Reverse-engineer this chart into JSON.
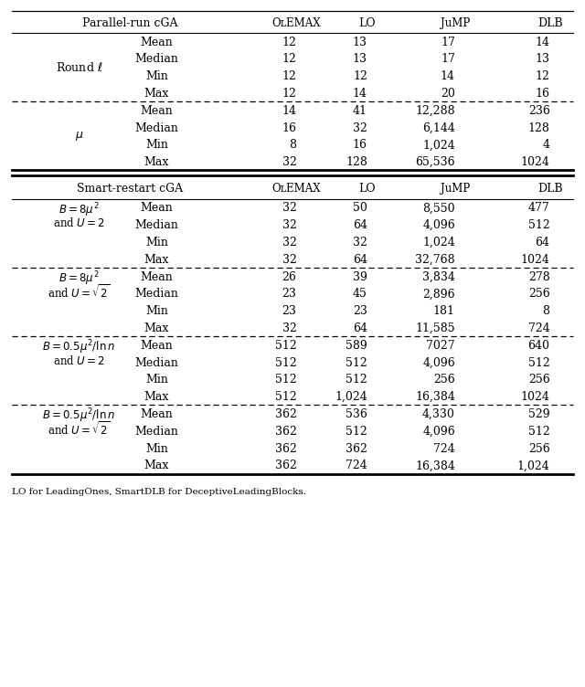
{
  "caption": "LO for LeadingOnes, SmartDLB for DeceptiveLeadingBlocks.",
  "sec1_groups": [
    {
      "label1": "Round $\\ell$",
      "label2": "",
      "rows": [
        [
          "Mean",
          "12",
          "13",
          "17",
          "14"
        ],
        [
          "Median",
          "12",
          "13",
          "17",
          "13"
        ],
        [
          "Min",
          "12",
          "12",
          "14",
          "12"
        ],
        [
          "Max",
          "12",
          "14",
          "20",
          "16"
        ]
      ],
      "dashed_below": true
    },
    {
      "label1": "$\\mu$",
      "label2": "",
      "rows": [
        [
          "Mean",
          "14",
          "41",
          "12,288",
          "236"
        ],
        [
          "Median",
          "16",
          "32",
          "6,144",
          "128"
        ],
        [
          "Min",
          "8",
          "16",
          "1,024",
          "4"
        ],
        [
          "Max",
          "32",
          "128",
          "65,536",
          "1024"
        ]
      ],
      "dashed_below": false
    }
  ],
  "sec2_groups": [
    {
      "label1": "$B = 8\\mu^2$",
      "label2": "and $U = 2$",
      "rows": [
        [
          "Mean",
          "32",
          "50",
          "8,550",
          "477"
        ],
        [
          "Median",
          "32",
          "64",
          "4,096",
          "512"
        ],
        [
          "Min",
          "32",
          "32",
          "1,024",
          "64"
        ],
        [
          "Max",
          "32",
          "64",
          "32,768",
          "1024"
        ]
      ],
      "dashed_below": true
    },
    {
      "label1": "$B = 8\\mu^2$",
      "label2": "and $U = \\sqrt{2}$",
      "rows": [
        [
          "Mean",
          "26",
          "39",
          "3,834",
          "278"
        ],
        [
          "Median",
          "23",
          "45",
          "2,896",
          "256"
        ],
        [
          "Min",
          "23",
          "23",
          "181",
          "8"
        ],
        [
          "Max",
          "32",
          "64",
          "11,585",
          "724"
        ]
      ],
      "dashed_below": true
    },
    {
      "label1": "$B = 0.5\\mu^2/\\ln n$",
      "label2": "and $U = 2$",
      "rows": [
        [
          "Mean",
          "512",
          "589",
          "7027",
          "640"
        ],
        [
          "Median",
          "512",
          "512",
          "4,096",
          "512"
        ],
        [
          "Min",
          "512",
          "512",
          "256",
          "256"
        ],
        [
          "Max",
          "512",
          "1,024",
          "16,384",
          "1024"
        ]
      ],
      "dashed_below": true
    },
    {
      "label1": "$B = 0.5\\mu^2/\\ln n$",
      "label2": "and $U = \\sqrt{2}$",
      "rows": [
        [
          "Mean",
          "362",
          "536",
          "4,330",
          "529"
        ],
        [
          "Median",
          "362",
          "512",
          "4,096",
          "512"
        ],
        [
          "Min",
          "362",
          "362",
          "724",
          "256"
        ],
        [
          "Max",
          "362",
          "724",
          "16,384",
          "1,024"
        ]
      ],
      "dashed_below": false
    }
  ]
}
